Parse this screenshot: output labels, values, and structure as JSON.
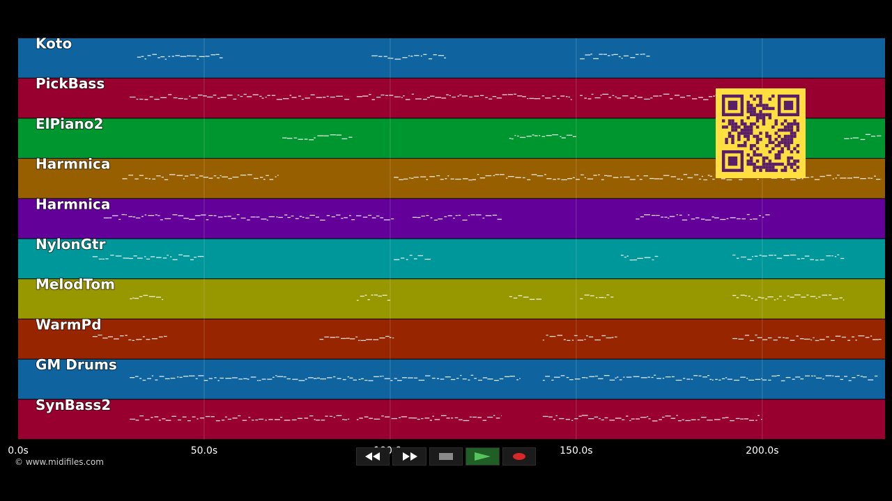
{
  "tracks": [
    {
      "name": "Koto",
      "color": "#0f64a0",
      "notes": [
        [
          32,
          55
        ],
        [
          95,
          115
        ],
        [
          151,
          170
        ]
      ]
    },
    {
      "name": "PickBass",
      "color": "#98002f",
      "notes": [
        [
          30,
          89
        ],
        [
          91,
          149
        ],
        [
          151,
          198
        ]
      ]
    },
    {
      "name": "ElPiano2",
      "color": "#00962f",
      "notes": [
        [
          71,
          90
        ],
        [
          132,
          150
        ],
        [
          222,
          232
        ]
      ]
    },
    {
      "name": "Harmnica",
      "color": "#985f00",
      "notes": [
        [
          28,
          70
        ],
        [
          101,
          232
        ]
      ]
    },
    {
      "name": "Harmnica",
      "color": "#620099",
      "notes": [
        [
          23,
          101
        ],
        [
          106,
          130
        ],
        [
          166,
          202
        ]
      ]
    },
    {
      "name": "NylonGtr",
      "color": "#00979a",
      "notes": [
        [
          20,
          50
        ],
        [
          101,
          111
        ],
        [
          162,
          172
        ],
        [
          192,
          222
        ]
      ]
    },
    {
      "name": "MelodTom",
      "color": "#979700",
      "notes": [
        [
          30,
          39
        ],
        [
          91,
          100
        ],
        [
          132,
          141
        ],
        [
          151,
          160
        ],
        [
          192,
          222
        ]
      ]
    },
    {
      "name": "WarmPd",
      "color": "#972500",
      "notes": [
        [
          20,
          40
        ],
        [
          81,
          101
        ],
        [
          141,
          161
        ],
        [
          192,
          232
        ]
      ]
    },
    {
      "name": "GM Drums",
      "color": "#0f64a0",
      "notes": [
        [
          30,
          90
        ],
        [
          90,
          135
        ],
        [
          141,
          200
        ],
        [
          200,
          231
        ]
      ]
    },
    {
      "name": "SynBass2",
      "color": "#98002f",
      "notes": [
        [
          30,
          89
        ],
        [
          91,
          130
        ],
        [
          141,
          200
        ]
      ]
    }
  ],
  "axis": {
    "range": [
      0,
      233
    ],
    "ticks": [
      {
        "value": 0,
        "label": "0.0s"
      },
      {
        "value": 50,
        "label": "50.0s"
      },
      {
        "value": 100,
        "label": "100.0s"
      },
      {
        "value": 150,
        "label": "150.0s"
      },
      {
        "value": 200,
        "label": "200.0s"
      }
    ]
  },
  "copyright": "© www.midifiles.com",
  "transport": {
    "buttons": [
      {
        "name": "rewind-button",
        "icon": "rewind-icon"
      },
      {
        "name": "fast-forward-button",
        "icon": "fast-forward-icon"
      },
      {
        "name": "stop-button",
        "icon": "stop-icon"
      },
      {
        "name": "play-button",
        "icon": "play-icon"
      },
      {
        "name": "record-button",
        "icon": "record-icon"
      }
    ]
  },
  "qr": {
    "name": "qr-code",
    "foreground": "#5a1e69",
    "background": "#ffe040"
  }
}
